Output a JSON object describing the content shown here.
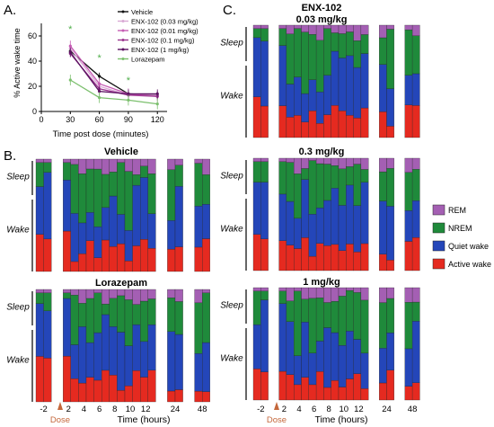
{
  "colors": {
    "rem": "#a45fb3",
    "nrem": "#1f8a3b",
    "quiet": "#2446b9",
    "active": "#e52a20",
    "dose": "#c4673b",
    "axis": "#000000"
  },
  "chart_data": [
    {
      "panel": "A.",
      "type": "line",
      "xlabel": "Time post dose (minutes)",
      "ylabel": "% Active wake time",
      "x": [
        30,
        60,
        90,
        120
      ],
      "xticks": [
        "0",
        "30",
        "60",
        "90",
        "120"
      ],
      "yticks": [
        "0",
        "20",
        "40",
        "60"
      ],
      "xlim": [
        0,
        130
      ],
      "ylim": [
        0,
        70
      ],
      "series": [
        {
          "name": "Vehicle",
          "color": "#111111",
          "values": [
            48,
            28,
            14,
            13
          ]
        },
        {
          "name": "ENX-102 (0.03 mg/kg)",
          "color": "#d9a9d5",
          "values": [
            50,
            20,
            13,
            13
          ]
        },
        {
          "name": "ENX-102 (0.01 mg/kg)",
          "color": "#c65cb4",
          "values": [
            52,
            22,
            14,
            12
          ]
        },
        {
          "name": "ENX-102 (0.1 mg/kg)",
          "color": "#9b3690",
          "values": [
            46,
            18,
            13,
            12
          ]
        },
        {
          "name": "ENX-102 (1 mg/kg)",
          "color": "#5a1060",
          "values": [
            47,
            16,
            14,
            14
          ]
        },
        {
          "name": "Lorazepam",
          "color": "#7cc06e",
          "values": [
            25,
            11,
            9,
            6
          ]
        }
      ],
      "annotations": [
        "*",
        "*",
        "*"
      ]
    },
    {
      "panel": "B.",
      "type": "bar",
      "stacked": true,
      "titles": [
        "Vehicle",
        "Lorazepam"
      ],
      "series_names": [
        "Active wake",
        "Quiet wake",
        "NREM",
        "REM"
      ],
      "ylabels": [
        "Sleep",
        "Wake"
      ],
      "xlabel": "Time (hours)",
      "xticks": [
        "-2",
        "2",
        "4",
        "6",
        "8",
        "10",
        "12",
        "24",
        "48"
      ],
      "dose_label": "Dose"
    },
    {
      "panel": "C.",
      "type": "bar",
      "stacked": true,
      "title": "ENX-102",
      "titles": [
        "0.03 mg/kg",
        "0.3 mg/kg",
        "1 mg/kg"
      ],
      "series_names": [
        "Active wake",
        "Quiet wake",
        "NREM",
        "REM"
      ],
      "ylabels": [
        "Sleep",
        "Wake"
      ],
      "xlabel": "Time (hours)",
      "xticks": [
        "-2",
        "2",
        "4",
        "6",
        "8",
        "10",
        "12",
        "24",
        "48"
      ],
      "dose_label": "Dose",
      "legend": [
        "REM",
        "NREM",
        "Quiet wake",
        "Active wake"
      ],
      "legend_position": "right"
    }
  ]
}
